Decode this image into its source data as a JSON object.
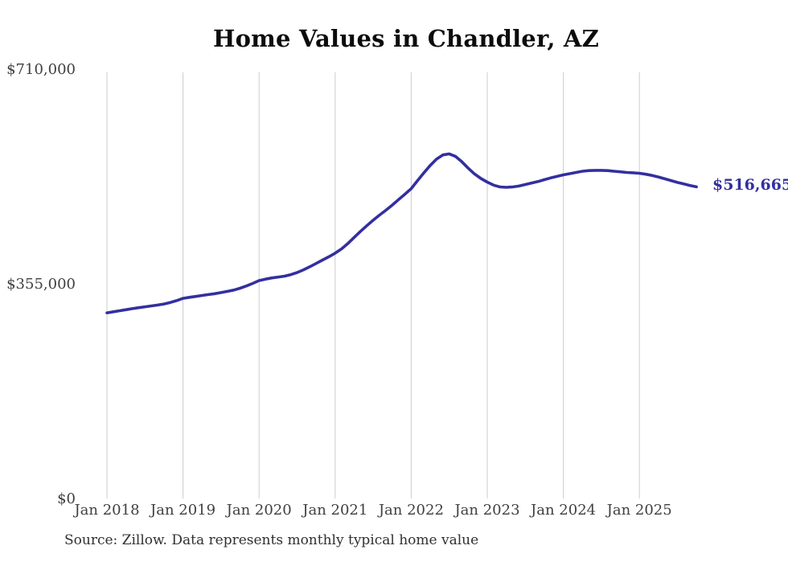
{
  "title": "Home Values in Chandler, AZ",
  "source_note": "Source: Zillow. Data represents monthly typical home value",
  "end_label": "$516,665",
  "colors": {
    "line": "#332F9F",
    "grid": "#CCCCCC",
    "tick_text": "#404040",
    "title_text": "#0C0C0C",
    "background": "#FFFFFF"
  },
  "chart_data": {
    "type": "line",
    "title": "Home Values in Chandler, AZ",
    "x_start": "Jan 2018",
    "x_step_months": 1,
    "x_tick_labels": [
      "Jan 2018",
      "Jan 2019",
      "Jan 2020",
      "Jan 2021",
      "Jan 2022",
      "Jan 2023",
      "Jan 2024",
      "Jan 2025"
    ],
    "y_ticks": [
      0,
      355000,
      710000
    ],
    "y_tick_labels": [
      "$0",
      "$355,000",
      "$710,000"
    ],
    "ylim": [
      0,
      710000
    ],
    "grid": "vertical-only",
    "legend": "none",
    "end_value": 516665,
    "series": [
      {
        "name": "Typical home value",
        "values": [
          308300,
          310000,
          311800,
          313500,
          315200,
          316800,
          318300,
          319800,
          321200,
          323000,
          325500,
          328500,
          332300,
          334000,
          335500,
          337000,
          338500,
          340000,
          341800,
          343800,
          346000,
          349000,
          352800,
          357000,
          361700,
          364000,
          366000,
          367500,
          369000,
          371500,
          375000,
          379500,
          384500,
          390000,
          395500,
          401000,
          407000,
          414000,
          423000,
          433000,
          443000,
          452500,
          461500,
          470000,
          478000,
          486500,
          495500,
          504500,
          513800,
          527000,
          540000,
          552000,
          562500,
          569500,
          571200,
          567000,
          558000,
          547500,
          538000,
          530500,
          524500,
          519500,
          516500,
          515900,
          516500,
          518000,
          520500,
          523000,
          525500,
          528500,
          531500,
          534000,
          536500,
          538500,
          540500,
          542500,
          543500,
          543900,
          543900,
          543500,
          542500,
          541500,
          540500,
          540000,
          539200,
          537500,
          535500,
          533000,
          530000,
          527000,
          524000,
          521500,
          519000,
          516665
        ]
      }
    ]
  }
}
